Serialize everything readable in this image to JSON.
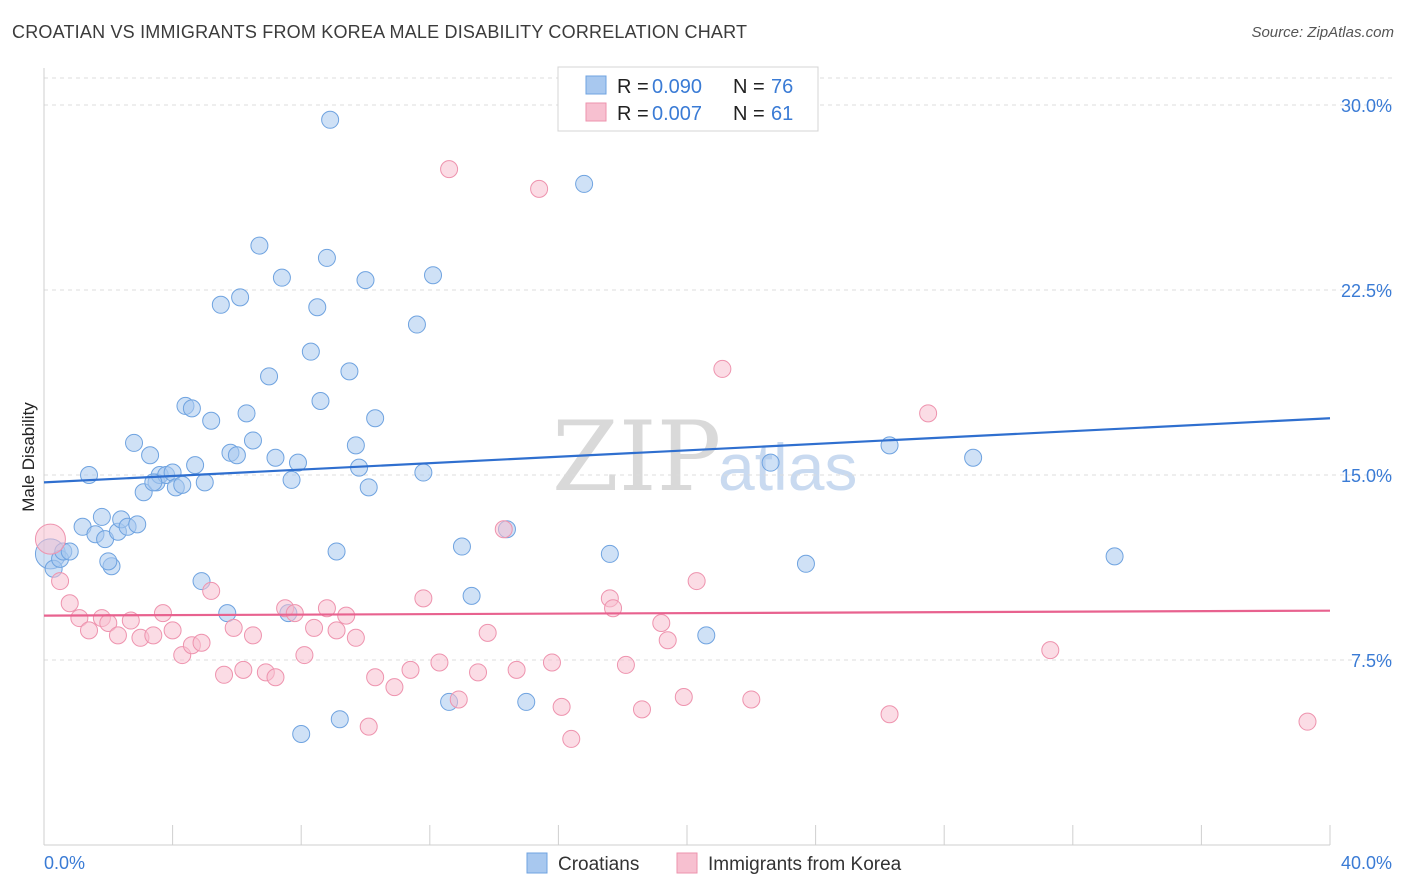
{
  "header": {
    "title": "CROATIAN VS IMMIGRANTS FROM KOREA MALE DISABILITY CORRELATION CHART",
    "source": "Source: ZipAtlas.com"
  },
  "legend_top": {
    "rows": [
      {
        "r_label": "R = ",
        "r_value": "0.090",
        "n_label": "N = ",
        "n_value": "76"
      },
      {
        "r_label": "R = ",
        "r_value": "0.007",
        "n_label": "N = ",
        "n_value": "61"
      }
    ]
  },
  "legend_bottom": {
    "items": [
      "Croatians",
      "Immigrants from Korea"
    ]
  },
  "watermark": {
    "zip": "ZIP",
    "atlas": "atlas"
  },
  "colors": {
    "blue_fill": "#a8c8ef",
    "blue_stroke": "#6fa3e0",
    "blue_line": "#2f6fcf",
    "pink_fill": "#f7c0d0",
    "pink_stroke": "#ee93ae",
    "pink_line": "#e8628f",
    "grid": "#dcdcdc",
    "axis_label": "#3a7bd5"
  },
  "chart_data": {
    "type": "scatter",
    "title": "CROATIAN VS IMMIGRANTS FROM KOREA MALE DISABILITY CORRELATION CHART",
    "xlabel": "",
    "ylabel": "Male Disability",
    "xlim": [
      0,
      40
    ],
    "ylim": [
      0,
      31.5
    ],
    "x_tick_labels": [
      "0.0%",
      "40.0%"
    ],
    "y_ticks": [
      7.5,
      15.0,
      22.5,
      30.0
    ],
    "y_tick_labels": [
      "7.5%",
      "15.0%",
      "22.5%",
      "30.0%"
    ],
    "grid": true,
    "legend_position": "top-center",
    "series": [
      {
        "name": "Croatians",
        "color": "#a8c8ef",
        "trend": {
          "x": [
            0,
            40
          ],
          "y": [
            14.7,
            17.3
          ]
        },
        "points": [
          [
            0.2,
            11.8
          ],
          [
            0.3,
            11.2
          ],
          [
            0.5,
            11.6
          ],
          [
            0.6,
            11.9
          ],
          [
            0.8,
            11.9
          ],
          [
            1.2,
            12.9
          ],
          [
            1.4,
            15.0
          ],
          [
            1.6,
            12.6
          ],
          [
            1.8,
            13.3
          ],
          [
            1.9,
            12.4
          ],
          [
            2.1,
            11.3
          ],
          [
            2.3,
            12.7
          ],
          [
            2.4,
            13.2
          ],
          [
            2.6,
            12.9
          ],
          [
            2.9,
            13.0
          ],
          [
            2.8,
            16.3
          ],
          [
            3.1,
            14.3
          ],
          [
            3.3,
            15.8
          ],
          [
            3.5,
            14.7
          ],
          [
            3.6,
            15.0
          ],
          [
            3.8,
            15.0
          ],
          [
            4.0,
            15.1
          ],
          [
            4.1,
            14.5
          ],
          [
            4.3,
            14.6
          ],
          [
            4.4,
            17.8
          ],
          [
            4.6,
            17.7
          ],
          [
            4.7,
            15.4
          ],
          [
            5.0,
            14.7
          ],
          [
            5.2,
            17.2
          ],
          [
            4.9,
            10.7
          ],
          [
            5.5,
            21.9
          ],
          [
            5.8,
            15.9
          ],
          [
            6.0,
            15.8
          ],
          [
            6.1,
            22.2
          ],
          [
            6.3,
            17.5
          ],
          [
            6.5,
            16.4
          ],
          [
            6.7,
            24.3
          ],
          [
            7.0,
            19.0
          ],
          [
            7.2,
            15.7
          ],
          [
            7.4,
            23.0
          ],
          [
            7.6,
            9.4
          ],
          [
            7.7,
            14.8
          ],
          [
            7.9,
            15.5
          ],
          [
            8.0,
            4.5
          ],
          [
            8.3,
            20.0
          ],
          [
            8.5,
            21.8
          ],
          [
            8.6,
            18.0
          ],
          [
            8.8,
            23.8
          ],
          [
            8.9,
            29.4
          ],
          [
            9.1,
            11.9
          ],
          [
            9.2,
            5.1
          ],
          [
            9.5,
            19.2
          ],
          [
            9.7,
            16.2
          ],
          [
            10.0,
            22.9
          ],
          [
            10.1,
            14.5
          ],
          [
            10.3,
            17.3
          ],
          [
            11.6,
            21.1
          ],
          [
            11.8,
            15.1
          ],
          [
            12.1,
            23.1
          ],
          [
            12.6,
            5.8
          ],
          [
            13.0,
            12.1
          ],
          [
            13.3,
            10.1
          ],
          [
            14.4,
            12.8
          ],
          [
            15.0,
            5.8
          ],
          [
            16.8,
            26.8
          ],
          [
            17.6,
            11.8
          ],
          [
            5.7,
            9.4
          ],
          [
            20.6,
            8.5
          ],
          [
            22.6,
            15.5
          ],
          [
            23.7,
            11.4
          ],
          [
            26.3,
            16.2
          ],
          [
            28.9,
            15.7
          ],
          [
            33.3,
            11.7
          ],
          [
            2.0,
            11.5
          ],
          [
            3.4,
            14.7
          ],
          [
            9.8,
            15.3
          ]
        ]
      },
      {
        "name": "Immigrants from Korea",
        "color": "#f7c0d0",
        "trend": {
          "x": [
            0,
            40
          ],
          "y": [
            9.3,
            9.5
          ]
        },
        "points": [
          [
            0.2,
            12.4
          ],
          [
            0.5,
            10.7
          ],
          [
            0.8,
            9.8
          ],
          [
            1.1,
            9.2
          ],
          [
            1.4,
            8.7
          ],
          [
            1.8,
            9.2
          ],
          [
            2.0,
            9.0
          ],
          [
            2.3,
            8.5
          ],
          [
            2.7,
            9.1
          ],
          [
            3.0,
            8.4
          ],
          [
            3.4,
            8.5
          ],
          [
            3.7,
            9.4
          ],
          [
            4.0,
            8.7
          ],
          [
            4.3,
            7.7
          ],
          [
            4.6,
            8.1
          ],
          [
            4.9,
            8.2
          ],
          [
            5.2,
            10.3
          ],
          [
            5.6,
            6.9
          ],
          [
            5.9,
            8.8
          ],
          [
            6.2,
            7.1
          ],
          [
            6.5,
            8.5
          ],
          [
            6.9,
            7.0
          ],
          [
            7.2,
            6.8
          ],
          [
            7.5,
            9.6
          ],
          [
            7.8,
            9.4
          ],
          [
            8.1,
            7.7
          ],
          [
            8.4,
            8.8
          ],
          [
            8.8,
            9.6
          ],
          [
            9.1,
            8.7
          ],
          [
            9.4,
            9.3
          ],
          [
            9.7,
            8.4
          ],
          [
            10.1,
            4.8
          ],
          [
            10.3,
            6.8
          ],
          [
            10.9,
            6.4
          ],
          [
            11.4,
            7.1
          ],
          [
            11.8,
            10.0
          ],
          [
            12.3,
            7.4
          ],
          [
            12.6,
            27.4
          ],
          [
            12.9,
            5.9
          ],
          [
            13.5,
            7.0
          ],
          [
            13.8,
            8.6
          ],
          [
            14.3,
            12.8
          ],
          [
            14.7,
            7.1
          ],
          [
            15.4,
            26.6
          ],
          [
            15.8,
            7.4
          ],
          [
            16.1,
            5.6
          ],
          [
            16.4,
            4.3
          ],
          [
            17.6,
            10.0
          ],
          [
            17.7,
            9.6
          ],
          [
            18.1,
            7.3
          ],
          [
            18.6,
            5.5
          ],
          [
            19.2,
            9.0
          ],
          [
            19.4,
            8.3
          ],
          [
            19.9,
            6.0
          ],
          [
            20.3,
            10.7
          ],
          [
            21.1,
            19.3
          ],
          [
            22.0,
            5.9
          ],
          [
            26.3,
            5.3
          ],
          [
            27.5,
            17.5
          ],
          [
            31.3,
            7.9
          ],
          [
            39.3,
            5.0
          ]
        ]
      }
    ]
  }
}
